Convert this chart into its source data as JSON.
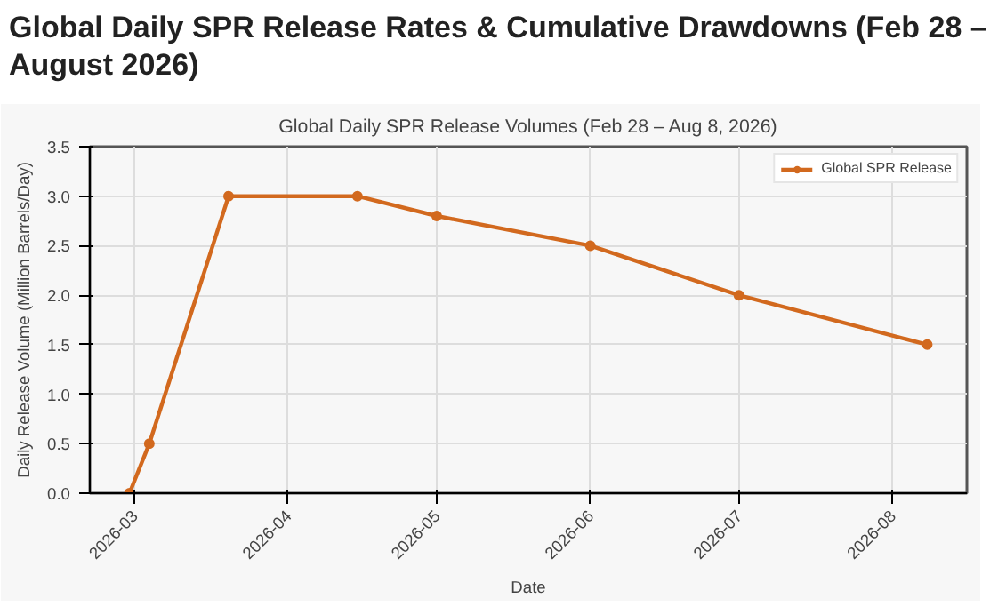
{
  "chart_data": {
    "type": "line",
    "title": "Global Daily SPR Release Rates & Cumulative Drawdowns (Feb 28 – August 2026)",
    "subtitle": "Global Daily SPR Release Volumes (Feb 28 – Aug 8, 2026)",
    "xlabel": "Date",
    "ylabel": "Daily Release Volume (Million Barrels/Day)",
    "x": [
      "2026-02-28",
      "2026-03-04",
      "2026-03-20",
      "2026-04-15",
      "2026-05-01",
      "2026-06-01",
      "2026-07-01",
      "2026-08-08"
    ],
    "series": [
      {
        "name": "Global SPR Release",
        "color": "#d2691e",
        "values": [
          0,
          0.5,
          3.0,
          3.0,
          2.8,
          2.5,
          2.0,
          1.5
        ]
      }
    ],
    "xlim": [
      "2026-02-20",
      "2026-08-16"
    ],
    "xticks": [
      {
        "value": "2026-03-01",
        "label": "2026-03"
      },
      {
        "value": "2026-04-01",
        "label": "2026-04"
      },
      {
        "value": "2026-05-01",
        "label": "2026-05"
      },
      {
        "value": "2026-06-01",
        "label": "2026-06"
      },
      {
        "value": "2026-07-01",
        "label": "2026-07"
      },
      {
        "value": "2026-08-01",
        "label": "2026-08"
      }
    ],
    "ylim": [
      0,
      3.5
    ],
    "yticks": [
      {
        "value": 0,
        "label": "0.0"
      },
      0.5,
      {
        "value": 1,
        "label": "1.0"
      },
      1.5,
      {
        "value": 2,
        "label": "2.0"
      },
      2.5,
      {
        "value": 3,
        "label": "3.0"
      },
      3.5
    ],
    "grid": true,
    "legend": "top right",
    "marker": "circle",
    "line_style": "solid"
  }
}
